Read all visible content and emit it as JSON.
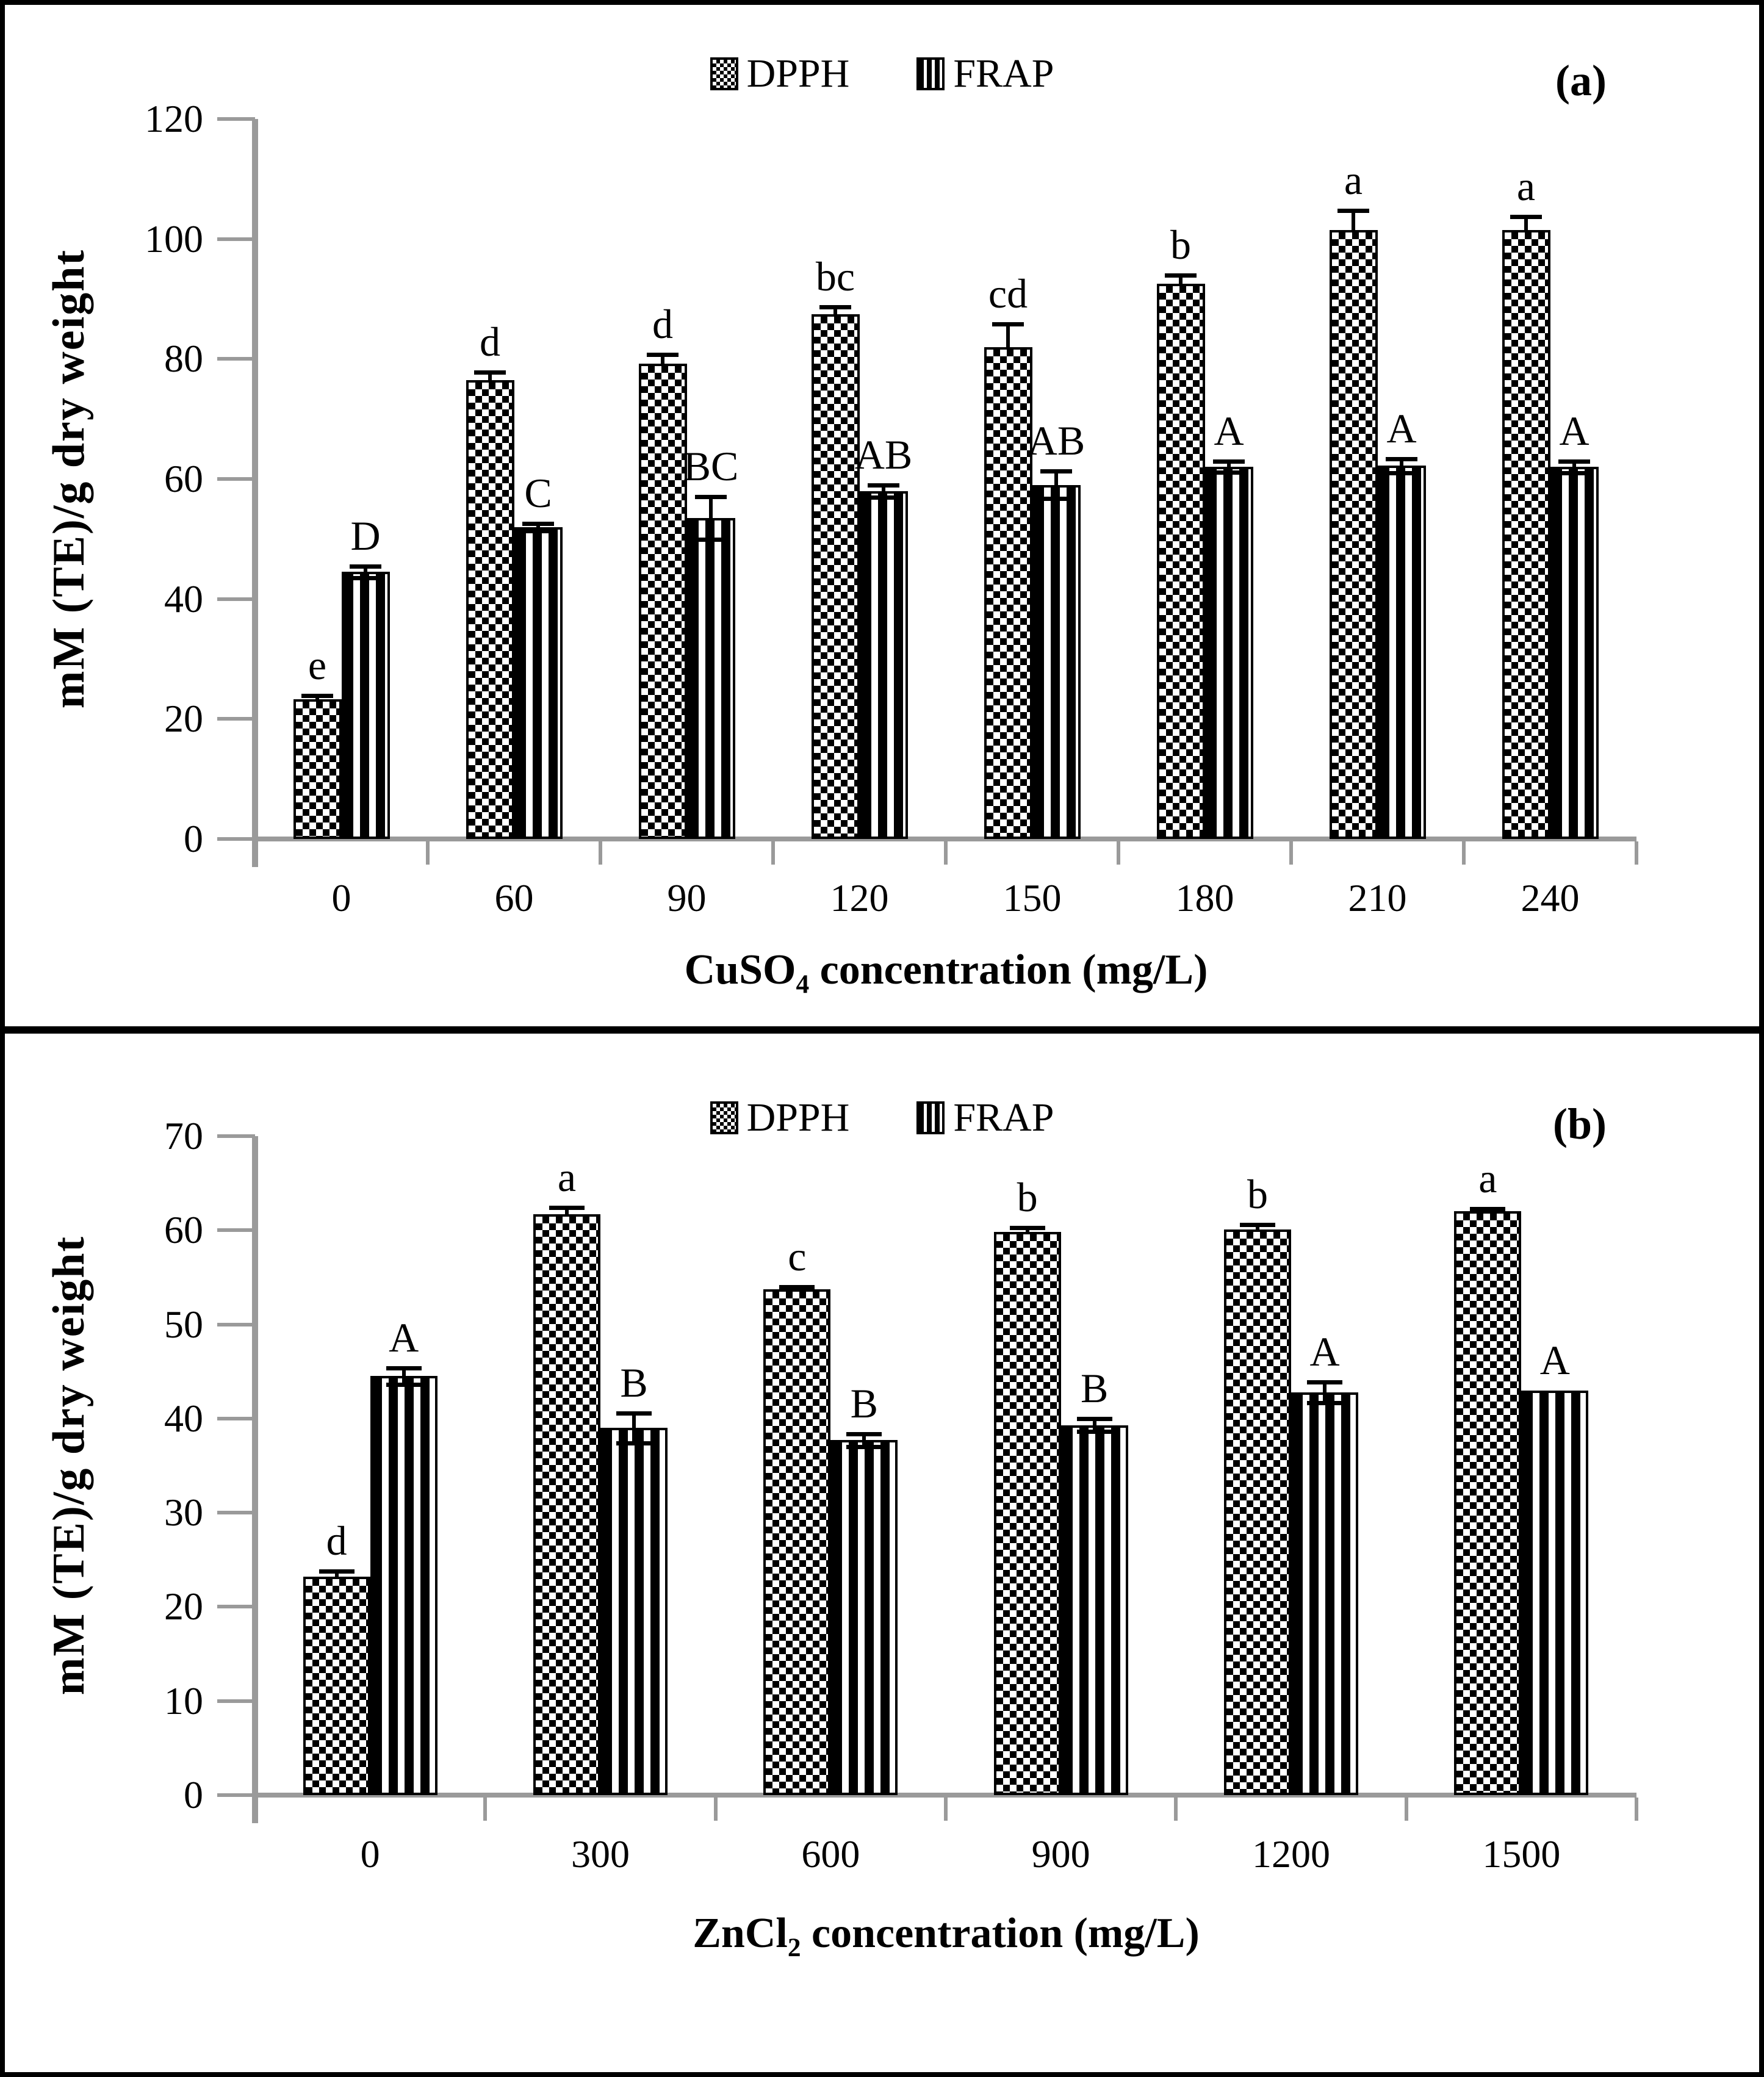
{
  "colors": {
    "axis_line": "#9a9a9a",
    "bar_ink": "#000000",
    "background": "#ffffff",
    "frame_border": "#000000"
  },
  "chart_data": [
    {
      "type": "bar",
      "panel_label": "(a)",
      "title": "",
      "ylabel": "mM (TE)/g dry weight",
      "xlabel": "CuSO4 concentration (mg/L)",
      "xlabel_parts": {
        "main": "CuSO",
        "sub": "4",
        "rest": " concentration (mg/L)"
      },
      "ylim": [
        0,
        120
      ],
      "ytick_step": 20,
      "yticks": [
        0,
        20,
        40,
        60,
        80,
        100,
        120
      ],
      "categories": [
        "0",
        "60",
        "90",
        "120",
        "150",
        "180",
        "210",
        "240"
      ],
      "grid": false,
      "legend_position": "top-center",
      "series": [
        {
          "name": "DPPH",
          "pattern": "checkerboard",
          "values": [
            23.3,
            76.5,
            79.2,
            87.5,
            82.0,
            92.5,
            101.5,
            101.5
          ],
          "errors": [
            0.6,
            1.3,
            1.5,
            1.2,
            3.8,
            1.5,
            3.2,
            2.2
          ],
          "sig_letters": [
            "e",
            "d",
            "d",
            "bc",
            "cd",
            "b",
            "a",
            "a"
          ]
        },
        {
          "name": "FRAP",
          "pattern": "vertical-stripes",
          "values": [
            44.5,
            52.0,
            53.5,
            58.0,
            59.0,
            62.0,
            62.2,
            62.0
          ],
          "errors": [
            1.0,
            0.6,
            3.6,
            1.0,
            2.3,
            0.9,
            1.2,
            1.0
          ],
          "sig_letters": [
            "D",
            "C",
            "BC",
            "AB",
            "AB",
            "A",
            "A",
            "A"
          ]
        }
      ]
    },
    {
      "type": "bar",
      "panel_label": "(b)",
      "title": "",
      "ylabel": "mM (TE)/g dry weight",
      "xlabel": "ZnCl2 concentration (mg/L)",
      "xlabel_parts": {
        "main": "ZnCl",
        "sub": "2",
        "rest": " concentration (mg/L)"
      },
      "ylim": [
        0,
        70
      ],
      "ytick_step": 10,
      "yticks": [
        0,
        10,
        20,
        30,
        40,
        50,
        60,
        70
      ],
      "categories": [
        "0",
        "300",
        "600",
        "900",
        "1200",
        "1500"
      ],
      "grid": false,
      "legend_position": "top-center",
      "series": [
        {
          "name": "DPPH",
          "pattern": "checkerboard",
          "values": [
            23.2,
            61.7,
            53.7,
            59.8,
            60.1,
            62.0
          ],
          "errors": [
            0.6,
            0.7,
            0.3,
            0.5,
            0.5,
            0.3
          ],
          "sig_letters": [
            "d",
            "a",
            "c",
            "b",
            "b",
            "a"
          ]
        },
        {
          "name": "FRAP",
          "pattern": "vertical-stripes",
          "values": [
            44.5,
            39.0,
            37.7,
            39.3,
            42.8,
            43.0
          ],
          "errors": [
            0.9,
            1.6,
            0.7,
            0.7,
            1.1,
            0
          ],
          "sig_letters": [
            "A",
            "B",
            "B",
            "B",
            "A",
            "A"
          ]
        }
      ]
    }
  ]
}
